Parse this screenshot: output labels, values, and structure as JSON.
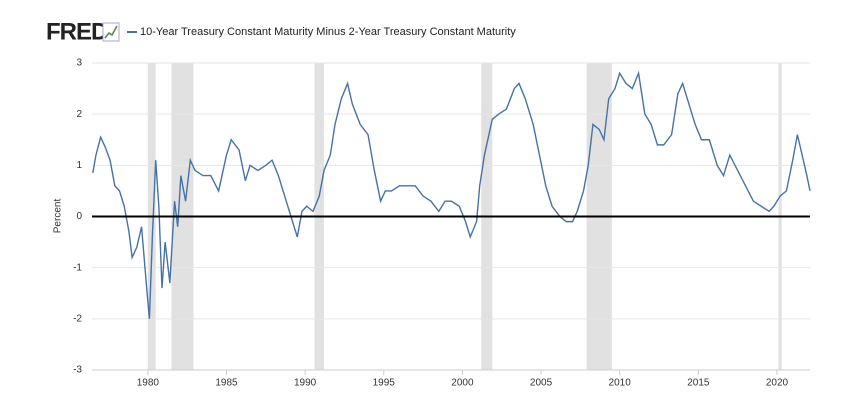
{
  "chart_data": {
    "type": "line",
    "logo": "FRED",
    "title": "10-Year Treasury Constant Maturity Minus 2-Year Treasury Constant Maturity",
    "y_label": "Percent",
    "series": [
      {
        "name": "10-Year Treasury Constant Maturity Minus 2-Year Treasury Constant Maturity",
        "color": "#4572a7",
        "x": [
          1976.5,
          1976.7,
          1977.0,
          1977.3,
          1977.6,
          1977.9,
          1978.2,
          1978.5,
          1978.8,
          1979.0,
          1979.3,
          1979.6,
          1979.9,
          1980.1,
          1980.3,
          1980.5,
          1980.7,
          1980.9,
          1981.1,
          1981.4,
          1981.7,
          1981.9,
          1982.1,
          1982.4,
          1982.7,
          1983.0,
          1983.5,
          1984.0,
          1984.5,
          1985.0,
          1985.3,
          1985.8,
          1986.2,
          1986.5,
          1987.0,
          1987.5,
          1987.9,
          1988.3,
          1988.8,
          1989.2,
          1989.5,
          1989.8,
          1990.1,
          1990.5,
          1990.9,
          1991.2,
          1991.6,
          1991.9,
          1992.3,
          1992.7,
          1993.0,
          1993.5,
          1994.0,
          1994.4,
          1994.8,
          1995.1,
          1995.5,
          1996.0,
          1996.5,
          1997.0,
          1997.5,
          1998.0,
          1998.5,
          1998.9,
          1999.3,
          1999.8,
          2000.2,
          2000.5,
          2000.9,
          2001.1,
          2001.4,
          2001.9,
          2002.3,
          2002.8,
          2003.3,
          2003.6,
          2004.0,
          2004.5,
          2004.9,
          2005.3,
          2005.7,
          2006.2,
          2006.6,
          2007.0,
          2007.3,
          2007.7,
          2008.0,
          2008.3,
          2008.7,
          2009.0,
          2009.3,
          2009.7,
          2010.0,
          2010.4,
          2010.8,
          2011.2,
          2011.6,
          2012.0,
          2012.4,
          2012.8,
          2013.3,
          2013.7,
          2014.0,
          2014.4,
          2014.8,
          2015.2,
          2015.7,
          2016.2,
          2016.6,
          2017.0,
          2017.5,
          2018.0,
          2018.5,
          2019.0,
          2019.5,
          2019.8,
          2020.2,
          2020.6,
          2021.0,
          2021.3,
          2021.6,
          2021.9,
          2022.1
        ],
        "values": [
          0.85,
          1.2,
          1.55,
          1.35,
          1.1,
          0.6,
          0.5,
          0.2,
          -0.3,
          -0.8,
          -0.6,
          -0.2,
          -1.3,
          -2.0,
          -0.3,
          1.1,
          0.2,
          -1.4,
          -0.5,
          -1.3,
          0.3,
          -0.2,
          0.8,
          0.3,
          1.1,
          0.9,
          0.8,
          0.8,
          0.5,
          1.2,
          1.5,
          1.3,
          0.7,
          1.0,
          0.9,
          1.0,
          1.1,
          0.8,
          0.3,
          -0.1,
          -0.4,
          0.1,
          0.2,
          0.1,
          0.4,
          0.9,
          1.2,
          1.8,
          2.3,
          2.6,
          2.2,
          1.8,
          1.6,
          0.9,
          0.3,
          0.5,
          0.5,
          0.6,
          0.6,
          0.6,
          0.4,
          0.3,
          0.1,
          0.3,
          0.3,
          0.2,
          -0.1,
          -0.4,
          -0.1,
          0.6,
          1.2,
          1.9,
          2.0,
          2.1,
          2.5,
          2.6,
          2.3,
          1.8,
          1.2,
          0.6,
          0.2,
          0.0,
          -0.1,
          -0.1,
          0.1,
          0.5,
          1.0,
          1.8,
          1.7,
          1.5,
          2.3,
          2.5,
          2.8,
          2.6,
          2.5,
          2.8,
          2.0,
          1.8,
          1.4,
          1.4,
          1.6,
          2.4,
          2.6,
          2.2,
          1.8,
          1.5,
          1.5,
          1.0,
          0.8,
          1.2,
          0.9,
          0.6,
          0.3,
          0.2,
          0.1,
          0.2,
          0.4,
          0.5,
          1.1,
          1.6,
          1.2,
          0.8,
          0.5
        ]
      }
    ],
    "recessions": [
      [
        1980.0,
        1980.5
      ],
      [
        1981.5,
        1982.9
      ],
      [
        1990.6,
        1991.2
      ],
      [
        2001.2,
        2001.9
      ],
      [
        2007.9,
        2009.5
      ],
      [
        2020.1,
        2020.3
      ]
    ],
    "recession_color": "#e1e1e1",
    "xlim": [
      1976.45,
      2022.1
    ],
    "xticks": [
      1980,
      1985,
      1990,
      1995,
      2000,
      2005,
      2010,
      2015,
      2020
    ],
    "ylim": [
      -3,
      3
    ],
    "yticks": [
      -3,
      -2,
      -1,
      0,
      1,
      2,
      3
    ],
    "grid": true
  }
}
